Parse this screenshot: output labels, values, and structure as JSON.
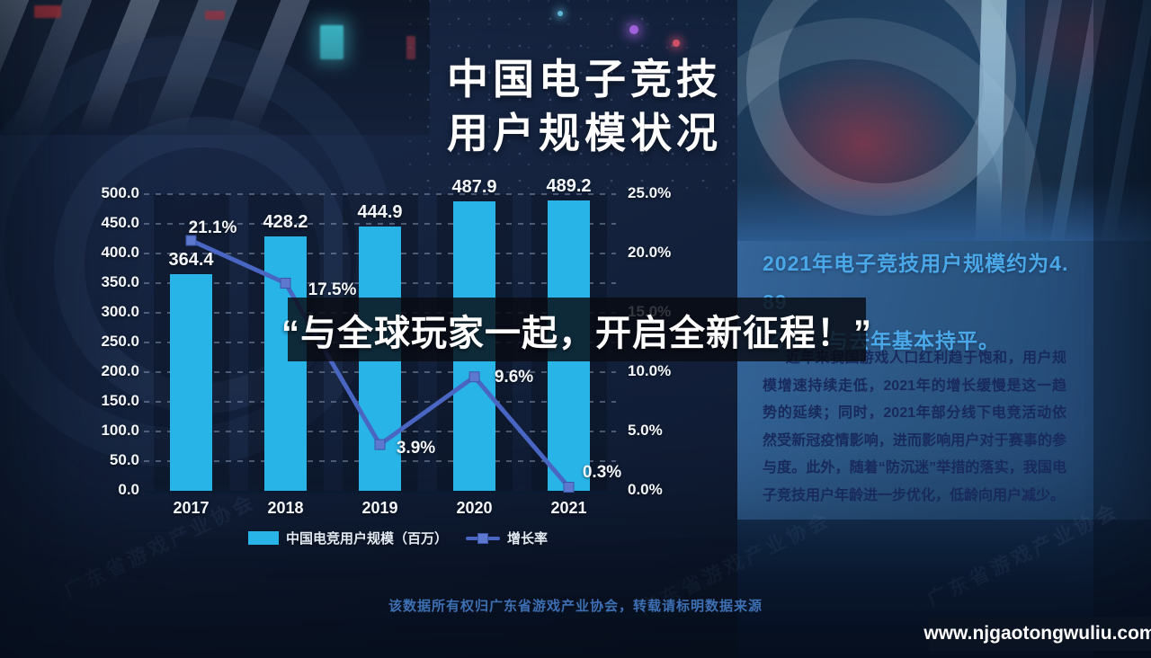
{
  "title": {
    "line1": "中国电子竞技",
    "line2": "用户规模状况"
  },
  "overlay": {
    "quote": "“与全球玩家一起，开启全新征程！”"
  },
  "chart_data": {
    "type": "combo",
    "title": "中国电子竞技用户规模状况",
    "categories": [
      "2017",
      "2018",
      "2019",
      "2020",
      "2021"
    ],
    "series": [
      {
        "name": "中国电竞用户规模（百万）",
        "type": "bar",
        "axis": "left",
        "color": "#29b4e8",
        "values": [
          364.4,
          428.2,
          444.9,
          487.9,
          489.2
        ],
        "point_labels": [
          "364.4",
          "428.2",
          "444.9",
          "487.9",
          "489.2"
        ]
      },
      {
        "name": "增长率",
        "type": "line",
        "axis": "right",
        "color": "#4866c2",
        "marker_color": "#5d79cf",
        "values": [
          21.1,
          17.5,
          3.9,
          9.6,
          0.3
        ],
        "point_labels": [
          "21.1%",
          "17.5%",
          "3.9%",
          "9.6%",
          "0.3%"
        ]
      }
    ],
    "left_axis": {
      "min": 0,
      "max": 500,
      "step": 50,
      "ticks": [
        "500.0",
        "450.0",
        "400.0",
        "350.0",
        "300.0",
        "250.0",
        "200.0",
        "150.0",
        "100.0",
        "50.0",
        "0.0"
      ]
    },
    "right_axis": {
      "min": 0,
      "max": 25,
      "step": 5,
      "ticks": [
        "25.0%",
        "20.0%",
        "15.0%",
        "10.0%",
        "5.0%",
        "0.0%"
      ]
    },
    "grid": "dashed-horizontal",
    "legend_position": "bottom"
  },
  "panel": {
    "headline": "2021年电子竞技用户规模约为4. 89\n亿人，与去年基本持平。",
    "paragraph": "近年来我国游戏人口红利趋于饱和，用户规模增速持续走低，2021年的增长缓慢是这一趋势的延续；同时，2021年部分线下电竞活动依然受新冠疫情影响，进而影响用户对于赛事的参与度。此外，随着“防沉迷”举措的落实，我国电子竞技用户年龄进一步优化，低龄向用户减少。"
  },
  "footer": {
    "attribution": "该数据所有权归广东省游戏产业协会，转载请标明数据来源"
  },
  "watermark": {
    "site": "www.njgaotongwuliu.com",
    "faint_text": "广东省游戏产业协会"
  },
  "colors": {
    "background": "#15233f",
    "bar": "#29b4e8",
    "line": "#4866c2",
    "line_marker": "#5d79cf",
    "headline_blue": "#4aa8e8",
    "paragraph_navy": "#18295c",
    "attribution_blue": "#3d6fb3",
    "quote_band": "rgba(8,11,18,0.82)"
  }
}
